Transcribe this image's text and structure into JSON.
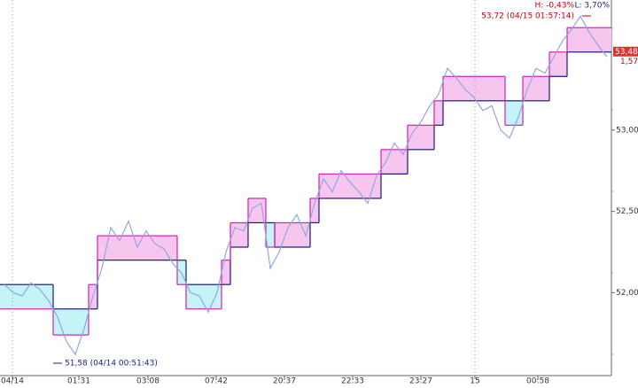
{
  "chart_data": {
    "type": "step-band",
    "x": [
      0,
      1,
      2,
      3,
      4,
      5,
      6,
      7,
      8,
      9,
      10,
      11,
      12,
      13,
      14,
      15,
      16,
      17,
      18,
      19,
      20,
      21,
      22,
      23,
      24,
      25,
      26,
      27,
      28,
      29,
      30,
      31,
      32,
      33,
      34,
      35,
      36,
      37,
      38,
      39,
      40,
      41,
      42,
      43,
      44,
      45,
      46,
      47,
      48,
      49,
      50,
      51,
      52,
      53,
      54,
      55,
      56,
      57,
      58,
      59,
      60,
      61,
      62,
      63,
      64,
      65,
      66,
      67,
      68
    ],
    "series": [
      {
        "color": "#1a1a7a",
        "values": [
          52.05,
          52.05,
          52.05,
          52.05,
          52.05,
          52.05,
          51.9,
          51.9,
          51.9,
          51.9,
          51.9,
          52.2,
          52.2,
          52.2,
          52.2,
          52.2,
          52.2,
          52.2,
          52.2,
          52.2,
          52.2,
          52.05,
          52.05,
          52.05,
          52.05,
          52.05,
          52.28,
          52.28,
          52.43,
          52.43,
          52.43,
          52.28,
          52.28,
          52.28,
          52.28,
          52.43,
          52.58,
          52.58,
          52.58,
          52.58,
          52.58,
          52.58,
          52.58,
          52.73,
          52.73,
          52.73,
          52.88,
          52.88,
          52.88,
          53.03,
          53.18,
          53.18,
          53.18,
          53.18,
          53.18,
          53.18,
          53.18,
          53.18,
          53.18,
          53.18,
          53.18,
          53.18,
          53.33,
          53.33,
          53.48,
          53.48,
          53.48,
          53.48,
          53.48
        ]
      },
      {
        "color": "#d21fb4",
        "values": [
          51.9,
          51.9,
          51.9,
          51.9,
          51.9,
          51.9,
          51.74,
          51.74,
          51.74,
          51.74,
          52.05,
          52.35,
          52.35,
          52.35,
          52.35,
          52.35,
          52.35,
          52.35,
          52.35,
          52.35,
          52.05,
          51.9,
          51.9,
          51.9,
          51.9,
          52.2,
          52.43,
          52.43,
          52.58,
          52.58,
          52.28,
          52.43,
          52.43,
          52.43,
          52.43,
          52.58,
          52.73,
          52.73,
          52.73,
          52.73,
          52.73,
          52.73,
          52.73,
          52.88,
          52.88,
          52.88,
          53.03,
          53.03,
          53.03,
          53.18,
          53.33,
          53.33,
          53.33,
          53.33,
          53.33,
          53.33,
          53.33,
          53.03,
          53.03,
          53.33,
          53.33,
          53.33,
          53.48,
          53.48,
          53.63,
          53.63,
          53.63,
          53.63,
          53.63
        ]
      },
      {
        "color": "#8fa7e0",
        "values": [
          52.05,
          52.0,
          51.98,
          52.06,
          52.02,
          51.95,
          51.85,
          51.7,
          51.62,
          51.78,
          51.98,
          52.15,
          52.4,
          52.32,
          52.44,
          52.28,
          52.38,
          52.3,
          52.27,
          52.18,
          52.12,
          52.0,
          51.98,
          51.88,
          52.0,
          52.25,
          52.4,
          52.38,
          52.52,
          52.55,
          52.15,
          52.25,
          52.4,
          52.48,
          52.35,
          52.55,
          52.7,
          52.62,
          52.75,
          52.68,
          52.62,
          52.55,
          52.72,
          52.8,
          52.92,
          52.85,
          52.98,
          53.05,
          53.15,
          53.22,
          53.38,
          53.32,
          53.25,
          53.2,
          53.12,
          53.15,
          53.0,
          52.95,
          53.08,
          53.25,
          53.38,
          53.35,
          53.45,
          53.55,
          53.62,
          53.7,
          53.6,
          53.52,
          53.45
        ]
      }
    ],
    "up_fill": "#f6c6ee",
    "down_fill": "#c4f4f6",
    "xlim": [
      0,
      69
    ],
    "xticks": [
      {
        "value": 1.4,
        "label": "04/14"
      },
      {
        "value": 8.9,
        "label": "01:31"
      },
      {
        "value": 16.7,
        "label": "03:08"
      },
      {
        "value": 24.4,
        "label": "07:42"
      },
      {
        "value": 32.1,
        "label": "20:37"
      },
      {
        "value": 39.8,
        "label": "22:33"
      },
      {
        "value": 47.5,
        "label": "23:27"
      },
      {
        "value": 53.6,
        "label": "15"
      },
      {
        "value": 60.7,
        "label": "00:58"
      }
    ],
    "ylim": [
      51.49,
      53.8
    ],
    "yticks": [
      {
        "value": 52.0,
        "label": "52,00"
      },
      {
        "value": 52.5,
        "label": "52,50"
      },
      {
        "value": 53.0,
        "label": "53,00"
      }
    ],
    "high_label": "H: -0,43%",
    "low_label": "L: 3,70%",
    "high_annotation": "53,72 (04/15 01:57:14)",
    "low_annotation": "51,58 (04/14 00:51:43)",
    "last_price": {
      "value": 53.48,
      "label": "53,48"
    },
    "last_change": "1,57"
  }
}
